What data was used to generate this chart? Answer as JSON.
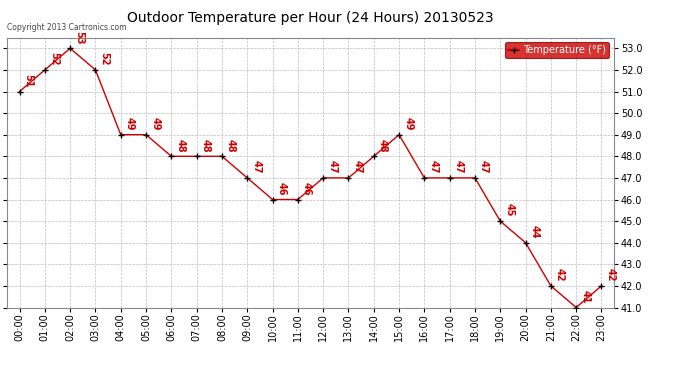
{
  "title": "Outdoor Temperature per Hour (24 Hours) 20130523",
  "copyright": "Copyright 2013 Cartronics.com",
  "legend_label": "Temperature (°F)",
  "hours": [
    "00:00",
    "01:00",
    "02:00",
    "03:00",
    "04:00",
    "05:00",
    "06:00",
    "07:00",
    "08:00",
    "09:00",
    "10:00",
    "11:00",
    "12:00",
    "13:00",
    "14:00",
    "15:00",
    "16:00",
    "17:00",
    "18:00",
    "19:00",
    "20:00",
    "21:00",
    "22:00",
    "23:00"
  ],
  "temps": [
    51,
    52,
    53,
    52,
    49,
    49,
    48,
    48,
    48,
    47,
    46,
    46,
    47,
    47,
    48,
    49,
    47,
    47,
    47,
    45,
    44,
    42,
    41,
    42
  ],
  "line_color": "#cc0000",
  "marker_color": "#000000",
  "label_color": "#cc0000",
  "bg_color": "#ffffff",
  "grid_color": "#bbbbbb",
  "ylim_min": 41.0,
  "ylim_max": 53.5,
  "ytick_min": 41.0,
  "ytick_max": 53.0,
  "ytick_step": 1.0,
  "legend_bg": "#cc0000",
  "legend_text_color": "#ffffff",
  "title_fontsize": 10,
  "label_fontsize": 7,
  "tick_fontsize": 7,
  "ytick_fontsize": 7
}
